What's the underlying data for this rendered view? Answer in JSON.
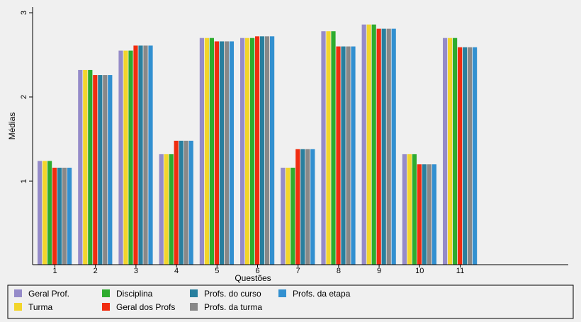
{
  "chart_data": {
    "type": "bar",
    "xlabel": "Questões",
    "ylabel": "Médias",
    "categories": [
      "1",
      "2",
      "3",
      "4",
      "5",
      "6",
      "7",
      "8",
      "9",
      "10",
      "11"
    ],
    "y_ticks": [
      "1",
      "2",
      "3"
    ],
    "ylim": [
      0,
      3.1
    ],
    "grid": false,
    "legend_position": "bottom",
    "series": [
      {
        "name": "Geral Prof.",
        "color": "#958bc9",
        "values": [
          1.24,
          2.32,
          2.55,
          1.32,
          2.7,
          2.7,
          1.16,
          2.78,
          2.86,
          1.32,
          2.7
        ]
      },
      {
        "name": "Turma",
        "color": "#f2d52b",
        "values": [
          1.24,
          2.32,
          2.55,
          1.32,
          2.7,
          2.7,
          1.16,
          2.78,
          2.86,
          1.32,
          2.7
        ]
      },
      {
        "name": "Disciplina",
        "color": "#2eac2e",
        "values": [
          1.24,
          2.32,
          2.55,
          1.32,
          2.7,
          2.7,
          1.16,
          2.78,
          2.86,
          1.32,
          2.7
        ]
      },
      {
        "name": "Geral dos Profs",
        "color": "#f02d10",
        "values": [
          1.16,
          2.26,
          2.61,
          1.48,
          2.66,
          2.72,
          1.38,
          2.6,
          2.81,
          1.2,
          2.59
        ]
      },
      {
        "name": "Profs. do curso",
        "color": "#287f9e",
        "values": [
          1.16,
          2.26,
          2.61,
          1.48,
          2.66,
          2.72,
          1.38,
          2.6,
          2.81,
          1.2,
          2.59
        ]
      },
      {
        "name": "Profs. da turma",
        "color": "#888888",
        "values": [
          1.16,
          2.26,
          2.61,
          1.48,
          2.66,
          2.72,
          1.38,
          2.6,
          2.81,
          1.2,
          2.59
        ]
      },
      {
        "name": "Profs. da etapa",
        "color": "#3290d0",
        "values": [
          1.16,
          2.26,
          2.61,
          1.48,
          2.66,
          2.72,
          1.38,
          2.6,
          2.81,
          1.2,
          2.59
        ]
      }
    ]
  }
}
